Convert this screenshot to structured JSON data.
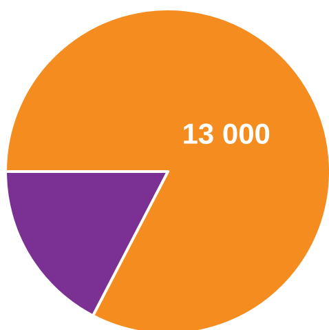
{
  "chart_data": {
    "type": "pie",
    "slices": [
      {
        "label": "",
        "value": 13000,
        "value_label": "13 000",
        "color": "#F58C1F"
      },
      {
        "label": "",
        "value": 2730,
        "value_label": "",
        "color": "#7B3194"
      }
    ],
    "start_angle_deg": 180,
    "direction": "clockwise",
    "legend": "none",
    "title": ""
  }
}
